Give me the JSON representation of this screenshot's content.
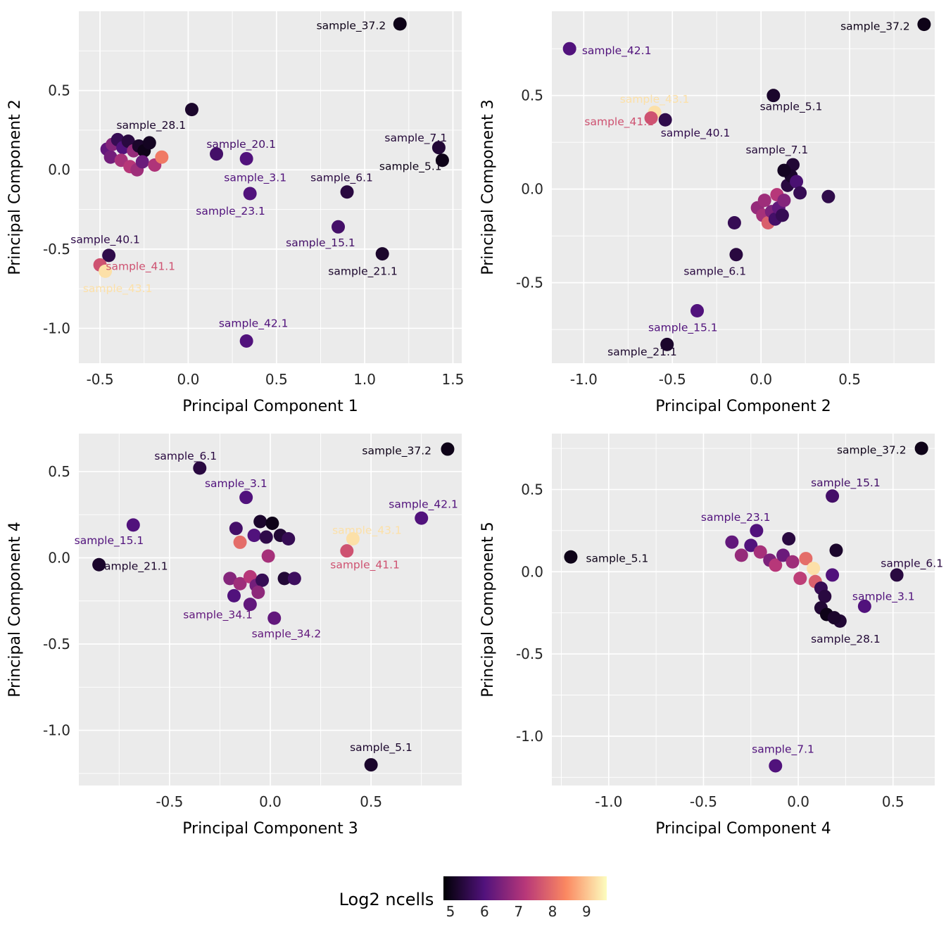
{
  "colorbar": {
    "title": "Log2 ncells",
    "ticks": [
      5,
      6,
      7,
      8,
      9
    ],
    "domain": [
      4.8,
      9.6
    ],
    "stops": [
      "#000004",
      "#51127c",
      "#b73779",
      "#fb8861",
      "#fcfdbf"
    ]
  },
  "chart_data": [
    {
      "type": "scatter",
      "xlabel": "Principal Component 1",
      "ylabel": "Principal Component 2",
      "xlim": [
        -0.62,
        1.55
      ],
      "ylim": [
        -1.22,
        1.0
      ],
      "xticks": [
        "-0.5",
        "0.0",
        "0.5",
        "1.0",
        "1.5"
      ],
      "yticks": [
        "-1.0",
        "-0.5",
        "0.0",
        "0.5"
      ],
      "points": [
        [
          1.2,
          0.92,
          5.0,
          "sample_37.2",
          1.12,
          0.91,
          "end"
        ],
        [
          0.02,
          0.38,
          5.2,
          "sample_28.1",
          -0.21,
          0.28,
          "middle"
        ],
        [
          0.16,
          0.1,
          5.8,
          "sample_20.1",
          0.3,
          0.16,
          "middle"
        ],
        [
          1.42,
          0.14,
          5.3,
          "sample_7.1",
          1.29,
          0.2,
          "middle"
        ],
        [
          1.44,
          0.06,
          5.0,
          "sample_5.1",
          1.26,
          0.02,
          "middle"
        ],
        [
          0.33,
          0.07,
          6.0,
          "sample_3.1",
          0.38,
          -0.05,
          "middle"
        ],
        [
          0.9,
          -0.14,
          5.4,
          "sample_6.1",
          0.87,
          -0.05,
          "middle"
        ],
        [
          0.35,
          -0.15,
          6.0,
          "sample_23.1",
          0.24,
          -0.26,
          "middle"
        ],
        [
          0.85,
          -0.36,
          5.8,
          "sample_15.1",
          0.75,
          -0.46,
          "middle"
        ],
        [
          -0.45,
          -0.54,
          5.5,
          "sample_40.1",
          -0.47,
          -0.44,
          "middle"
        ],
        [
          -0.5,
          -0.6,
          7.6,
          "sample_41.1",
          -0.27,
          -0.61,
          "middle"
        ],
        [
          -0.47,
          -0.64,
          9.3,
          "sample_43.1",
          -0.4,
          -0.75,
          "middle"
        ],
        [
          1.1,
          -0.53,
          5.2,
          "sample_21.1",
          0.99,
          -0.64,
          "middle"
        ],
        [
          0.33,
          -1.08,
          6.0,
          "sample_42.1",
          0.37,
          -0.97,
          "middle"
        ],
        [
          -0.46,
          0.13,
          6.2
        ],
        [
          -0.43,
          0.16,
          6.6
        ],
        [
          -0.4,
          0.19,
          5.6
        ],
        [
          -0.37,
          0.14,
          6.0
        ],
        [
          -0.34,
          0.18,
          5.4
        ],
        [
          -0.31,
          0.12,
          6.8
        ],
        [
          -0.28,
          0.15,
          5.2
        ],
        [
          -0.25,
          0.12,
          5.0
        ],
        [
          -0.22,
          0.17,
          5.1
        ],
        [
          -0.44,
          0.08,
          6.4
        ],
        [
          -0.38,
          0.06,
          7.0
        ],
        [
          -0.33,
          0.02,
          7.2
        ],
        [
          -0.29,
          0.0,
          6.9
        ],
        [
          -0.26,
          0.05,
          6.3
        ],
        [
          -0.19,
          0.03,
          7.1
        ],
        [
          -0.15,
          0.08,
          8.2
        ]
      ]
    },
    {
      "type": "scatter",
      "xlabel": "Principal Component 2",
      "ylabel": "Principal Component 3",
      "xlim": [
        -1.18,
        0.98
      ],
      "ylim": [
        -0.93,
        0.95
      ],
      "xticks": [
        "-1.0",
        "-0.5",
        "0.0",
        "0.5"
      ],
      "yticks": [
        "-0.5",
        "0.0",
        "0.5"
      ],
      "points": [
        [
          0.92,
          0.88,
          5.0,
          "sample_37.2",
          0.84,
          0.87,
          "end"
        ],
        [
          -1.08,
          0.75,
          6.0,
          "sample_42.1",
          -1.01,
          0.74,
          "start"
        ],
        [
          0.07,
          0.5,
          5.2,
          "sample_5.1",
          0.17,
          0.44,
          "middle"
        ],
        [
          -0.6,
          0.41,
          9.3,
          "sample_43.1",
          -0.6,
          0.48,
          "middle"
        ],
        [
          -0.62,
          0.38,
          7.6,
          "sample_41.1",
          -0.8,
          0.36,
          "middle"
        ],
        [
          -0.54,
          0.37,
          5.5,
          "sample_40.1",
          -0.37,
          0.3,
          "middle"
        ],
        [
          0.18,
          0.13,
          5.3,
          "sample_7.1",
          0.09,
          0.21,
          "middle"
        ],
        [
          -0.14,
          -0.35,
          5.4,
          "sample_6.1",
          -0.26,
          -0.44,
          "middle"
        ],
        [
          -0.36,
          -0.65,
          6.0,
          "sample_15.1",
          -0.44,
          -0.74,
          "middle"
        ],
        [
          -0.53,
          -0.83,
          5.2,
          "sample_21.1",
          -0.67,
          -0.87,
          "middle"
        ],
        [
          -0.15,
          -0.18,
          5.6
        ],
        [
          -0.02,
          -0.1,
          6.8
        ],
        [
          0.01,
          -0.14,
          7.0
        ],
        [
          0.04,
          -0.18,
          7.8
        ],
        [
          0.06,
          -0.12,
          6.5
        ],
        [
          0.02,
          -0.06,
          6.9
        ],
        [
          0.08,
          -0.16,
          5.8
        ],
        [
          0.1,
          -0.1,
          6.2
        ],
        [
          0.12,
          -0.14,
          5.6
        ],
        [
          0.09,
          -0.03,
          7.2
        ],
        [
          0.13,
          -0.06,
          6.6
        ],
        [
          0.15,
          0.02,
          5.4
        ],
        [
          0.17,
          0.07,
          5.2
        ],
        [
          0.2,
          0.04,
          5.9
        ],
        [
          0.22,
          -0.02,
          5.6
        ],
        [
          0.38,
          -0.04,
          5.5
        ],
        [
          0.13,
          0.1,
          5.1
        ]
      ]
    },
    {
      "type": "scatter",
      "xlabel": "Principal Component 3",
      "ylabel": "Principal Component 4",
      "xlim": [
        -0.95,
        0.95
      ],
      "ylim": [
        -1.32,
        0.72
      ],
      "xticks": [
        "-0.5",
        "0.0",
        "0.5"
      ],
      "yticks": [
        "-1.0",
        "-0.5",
        "0.0",
        "0.5"
      ],
      "points": [
        [
          0.88,
          0.63,
          5.0,
          "sample_37.2",
          0.8,
          0.62,
          "end"
        ],
        [
          -0.35,
          0.52,
          5.4,
          "sample_6.1",
          -0.42,
          0.59,
          "middle"
        ],
        [
          -0.12,
          0.35,
          6.0,
          "sample_3.1",
          -0.17,
          0.43,
          "middle"
        ],
        [
          0.75,
          0.23,
          6.0,
          "sample_42.1",
          0.76,
          0.31,
          "middle"
        ],
        [
          -0.68,
          0.19,
          6.0,
          "sample_15.1",
          -0.8,
          0.1,
          "middle"
        ],
        [
          0.41,
          0.11,
          9.3,
          "sample_43.1",
          0.48,
          0.16,
          "middle"
        ],
        [
          0.38,
          0.04,
          7.6,
          "sample_41.1",
          0.47,
          -0.04,
          "middle"
        ],
        [
          -0.85,
          -0.04,
          5.2,
          "sample_21.1",
          -0.68,
          -0.05,
          "middle"
        ],
        [
          -0.1,
          -0.27,
          6.2,
          "sample_34.1",
          -0.26,
          -0.33,
          "middle"
        ],
        [
          0.02,
          -0.35,
          6.2,
          "sample_34.2",
          0.08,
          -0.44,
          "middle"
        ],
        [
          0.5,
          -1.2,
          5.2,
          "sample_5.1",
          0.55,
          -1.1,
          "middle"
        ],
        [
          -0.17,
          0.17,
          5.8
        ],
        [
          -0.05,
          0.21,
          5.2
        ],
        [
          0.01,
          0.2,
          5.0
        ],
        [
          -0.08,
          0.13,
          6.0
        ],
        [
          -0.02,
          0.12,
          5.5
        ],
        [
          0.05,
          0.13,
          5.3
        ],
        [
          0.09,
          0.11,
          5.6
        ],
        [
          -0.15,
          0.09,
          8.0
        ],
        [
          -0.01,
          0.01,
          7.0
        ],
        [
          -0.2,
          -0.12,
          6.6
        ],
        [
          -0.15,
          -0.15,
          6.9
        ],
        [
          -0.1,
          -0.11,
          7.2
        ],
        [
          -0.07,
          -0.16,
          6.4
        ],
        [
          -0.04,
          -0.13,
          5.6
        ],
        [
          0.07,
          -0.12,
          5.3
        ],
        [
          0.12,
          -0.12,
          5.7
        ],
        [
          -0.18,
          -0.22,
          6.0
        ],
        [
          -0.06,
          -0.2,
          6.7
        ]
      ]
    },
    {
      "type": "scatter",
      "xlabel": "Principal Component 4",
      "ylabel": "Principal Component 5",
      "xlim": [
        -1.3,
        0.72
      ],
      "ylim": [
        -1.3,
        0.84
      ],
      "xticks": [
        "-1.0",
        "-0.5",
        "0.0",
        "0.5"
      ],
      "yticks": [
        "-1.0",
        "-0.5",
        "0.0",
        "0.5"
      ],
      "points": [
        [
          0.65,
          0.75,
          5.0,
          "sample_37.2",
          0.57,
          0.74,
          "end"
        ],
        [
          0.18,
          0.46,
          5.8,
          "sample_15.1",
          0.25,
          0.54,
          "middle"
        ],
        [
          -0.22,
          0.25,
          6.0,
          "sample_23.1",
          -0.33,
          0.33,
          "middle"
        ],
        [
          -1.2,
          0.09,
          5.0,
          "sample_5.1",
          -1.12,
          0.08,
          "start"
        ],
        [
          0.52,
          -0.02,
          5.4,
          "sample_6.1",
          0.6,
          0.05,
          "middle"
        ],
        [
          0.35,
          -0.21,
          6.0,
          "sample_3.1",
          0.45,
          -0.15,
          "middle"
        ],
        [
          0.22,
          -0.3,
          5.3,
          "sample_28.1",
          0.25,
          -0.41,
          "middle"
        ],
        [
          -0.12,
          -1.18,
          6.0,
          "sample_7.1",
          -0.08,
          -1.08,
          "middle"
        ],
        [
          -0.35,
          0.18,
          6.2
        ],
        [
          -0.3,
          0.1,
          6.8
        ],
        [
          -0.25,
          0.16,
          6.0
        ],
        [
          -0.2,
          0.12,
          7.0
        ],
        [
          -0.15,
          0.07,
          6.5
        ],
        [
          -0.12,
          0.04,
          7.2
        ],
        [
          -0.08,
          0.1,
          6.3
        ],
        [
          -0.05,
          0.2,
          5.4
        ],
        [
          -0.03,
          0.06,
          6.9
        ],
        [
          0.04,
          0.08,
          8.0
        ],
        [
          0.08,
          0.02,
          9.3
        ],
        [
          0.01,
          -0.04,
          7.3
        ],
        [
          0.09,
          -0.06,
          7.8
        ],
        [
          0.12,
          -0.1,
          5.6
        ],
        [
          0.14,
          -0.15,
          5.4
        ],
        [
          0.12,
          -0.22,
          5.3
        ],
        [
          0.15,
          -0.26,
          5.0
        ],
        [
          0.19,
          -0.28,
          5.2
        ],
        [
          0.2,
          0.13,
          5.2
        ],
        [
          0.18,
          -0.02,
          6.0
        ]
      ]
    }
  ]
}
